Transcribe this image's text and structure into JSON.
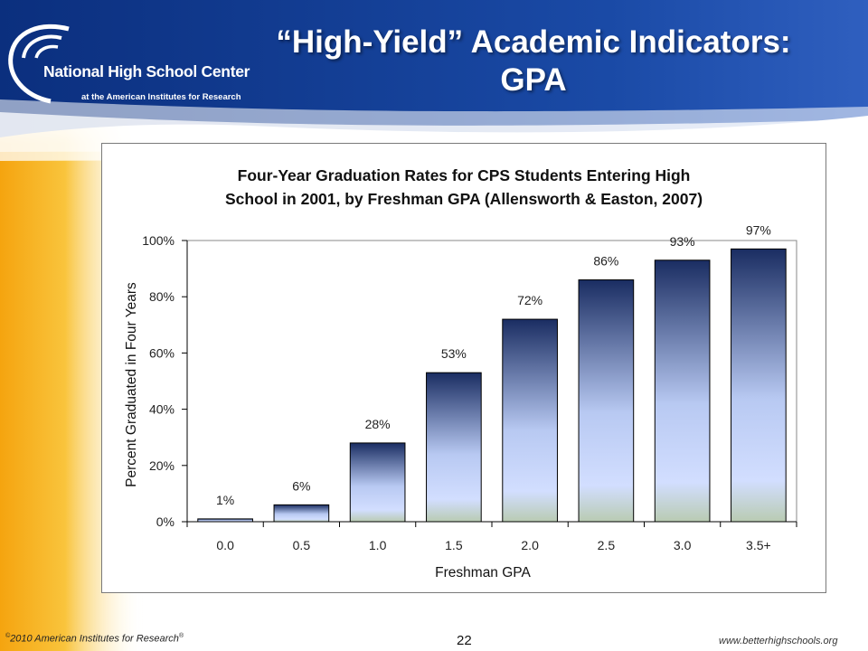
{
  "slide": {
    "title_line1": "“High-Yield” Academic Indicators:",
    "title_line2": "GPA"
  },
  "logo": {
    "name": "National High School Center",
    "subtitle": "at the American Institutes for Research"
  },
  "footer": {
    "copyright": "2010 American Institutes for Research",
    "copyright_symbol": "©",
    "registered_symbol": "®",
    "page_number": "22",
    "website": "www.betterhighschools.org"
  },
  "colors": {
    "header_blue": "#0b2f7e",
    "side_yellow": "#f6b21b",
    "bar_top": "#1a2d62",
    "bar_bottom": "#d2deff"
  },
  "chart_data": {
    "type": "bar",
    "title_line1": "Four-Year Graduation Rates for CPS Students Entering High",
    "title_line2": "School in 2001, by Freshman GPA (Allensworth & Easton, 2007)",
    "xlabel": "Freshman GPA",
    "ylabel": "Percent Graduated in Four Years",
    "categories": [
      "0.0",
      "0.5",
      "1.0",
      "1.5",
      "2.0",
      "2.5",
      "3.0",
      "3.5+"
    ],
    "values": [
      1,
      6,
      28,
      53,
      72,
      86,
      93,
      97
    ],
    "data_labels": [
      "1%",
      "6%",
      "28%",
      "53%",
      "72%",
      "86%",
      "93%",
      "97%"
    ],
    "ylim": [
      0,
      100
    ],
    "yticks": [
      0,
      20,
      40,
      60,
      80,
      100
    ],
    "ytick_labels": [
      "0%",
      "20%",
      "40%",
      "60%",
      "80%",
      "100%"
    ],
    "grid": false,
    "legend": "none"
  }
}
